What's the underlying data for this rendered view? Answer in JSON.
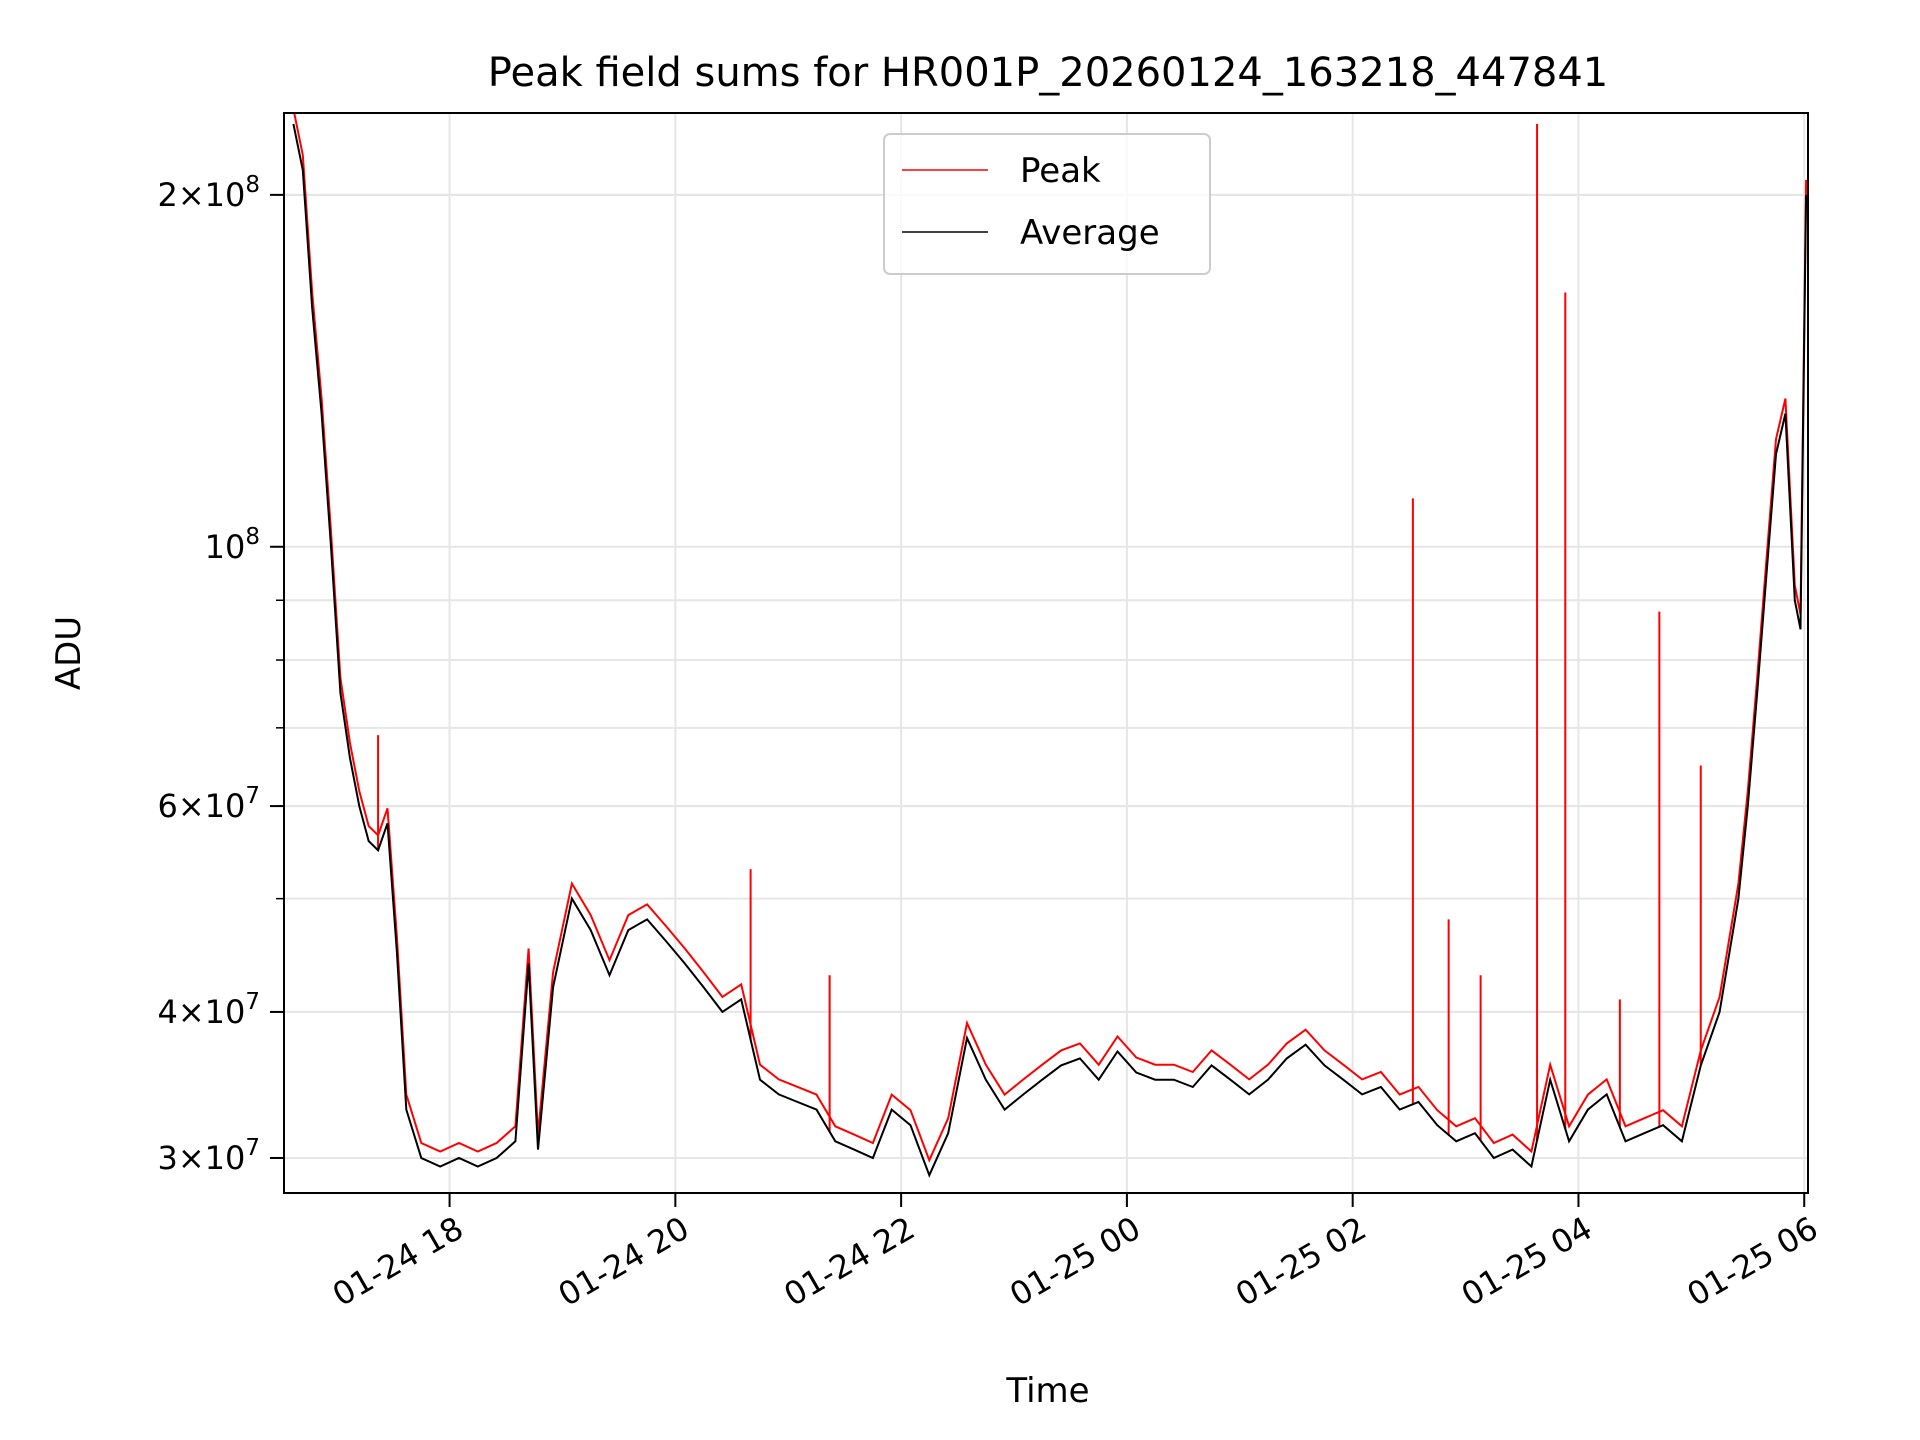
{
  "chart_data": {
    "type": "line",
    "title": "Peak field sums for HR001P_20260124_163218_447841",
    "xlabel": "Time",
    "ylabel": "ADU",
    "yscale": "log",
    "ylim": [
      28000000,
      235000000
    ],
    "xlim": [
      "2026-01-24T16:32",
      "2026-01-25T06:02"
    ],
    "grid": true,
    "legend": "upper center",
    "x_ticks": [
      {
        "t": "2026-01-24T18:00",
        "label": "01-24 18"
      },
      {
        "t": "2026-01-24T20:00",
        "label": "01-24 20"
      },
      {
        "t": "2026-01-24T22:00",
        "label": "01-24 22"
      },
      {
        "t": "2026-01-25T00:00",
        "label": "01-25 00"
      },
      {
        "t": "2026-01-25T02:00",
        "label": "01-25 02"
      },
      {
        "t": "2026-01-25T04:00",
        "label": "01-25 04"
      },
      {
        "t": "2026-01-25T06:00",
        "label": "01-25 06"
      }
    ],
    "y_ticks": [
      {
        "v": 30000000,
        "mant": "3",
        "exp": "7"
      },
      {
        "v": 40000000,
        "mant": "4",
        "exp": "7"
      },
      {
        "v": 60000000,
        "mant": "6",
        "exp": "7"
      },
      {
        "v": 100000000,
        "mant": "",
        "exp": "8"
      },
      {
        "v": 200000000,
        "mant": "2",
        "exp": "8"
      }
    ],
    "colors": {
      "peak": "#ff0000",
      "average": "#000000"
    },
    "series": [
      {
        "name": "Average",
        "key": "average",
        "x": [
          "2026-01-24T16:37",
          "2026-01-24T16:42",
          "2026-01-24T16:47",
          "2026-01-24T16:52",
          "2026-01-24T16:57",
          "2026-01-24T17:02",
          "2026-01-24T17:07",
          "2026-01-24T17:12",
          "2026-01-24T17:17",
          "2026-01-24T17:22",
          "2026-01-24T17:27",
          "2026-01-24T17:32",
          "2026-01-24T17:37",
          "2026-01-24T17:45",
          "2026-01-24T17:55",
          "2026-01-24T18:05",
          "2026-01-24T18:15",
          "2026-01-24T18:25",
          "2026-01-24T18:35",
          "2026-01-24T18:42",
          "2026-01-24T18:47",
          "2026-01-24T18:55",
          "2026-01-24T19:05",
          "2026-01-24T19:15",
          "2026-01-24T19:25",
          "2026-01-24T19:35",
          "2026-01-24T19:45",
          "2026-01-24T19:55",
          "2026-01-24T20:05",
          "2026-01-24T20:15",
          "2026-01-24T20:25",
          "2026-01-24T20:35",
          "2026-01-24T20:45",
          "2026-01-24T20:55",
          "2026-01-24T21:05",
          "2026-01-24T21:15",
          "2026-01-24T21:25",
          "2026-01-24T21:35",
          "2026-01-24T21:45",
          "2026-01-24T21:55",
          "2026-01-24T22:05",
          "2026-01-24T22:15",
          "2026-01-24T22:25",
          "2026-01-24T22:35",
          "2026-01-24T22:45",
          "2026-01-24T22:55",
          "2026-01-24T23:05",
          "2026-01-24T23:15",
          "2026-01-24T23:25",
          "2026-01-24T23:35",
          "2026-01-24T23:45",
          "2026-01-24T23:55",
          "2026-01-25T00:05",
          "2026-01-25T00:15",
          "2026-01-25T00:25",
          "2026-01-25T00:35",
          "2026-01-25T00:45",
          "2026-01-25T00:55",
          "2026-01-25T01:05",
          "2026-01-25T01:15",
          "2026-01-25T01:25",
          "2026-01-25T01:35",
          "2026-01-25T01:45",
          "2026-01-25T01:55",
          "2026-01-25T02:05",
          "2026-01-25T02:15",
          "2026-01-25T02:25",
          "2026-01-25T02:35",
          "2026-01-25T02:45",
          "2026-01-25T02:55",
          "2026-01-25T03:05",
          "2026-01-25T03:15",
          "2026-01-25T03:25",
          "2026-01-25T03:35",
          "2026-01-25T03:45",
          "2026-01-25T03:55",
          "2026-01-25T04:05",
          "2026-01-25T04:15",
          "2026-01-25T04:25",
          "2026-01-25T04:35",
          "2026-01-25T04:45",
          "2026-01-25T04:55",
          "2026-01-25T05:05",
          "2026-01-25T05:15",
          "2026-01-25T05:25",
          "2026-01-25T05:30",
          "2026-01-25T05:35",
          "2026-01-25T05:40",
          "2026-01-25T05:45",
          "2026-01-25T05:50",
          "2026-01-25T05:55",
          "2026-01-25T05:58",
          "2026-01-25T06:00",
          "2026-01-25T06:01"
        ],
        "values": [
          230000000,
          210000000,
          160000000,
          130000000,
          100000000,
          75000000,
          66000000,
          60000000,
          56000000,
          55000000,
          58000000,
          45000000,
          33000000,
          30000000,
          29500000,
          30000000,
          29500000,
          30000000,
          31000000,
          44000000,
          30500000,
          42000000,
          50000000,
          47000000,
          43000000,
          47000000,
          48000000,
          46000000,
          44000000,
          42000000,
          40000000,
          41000000,
          35000000,
          34000000,
          33500000,
          33000000,
          31000000,
          30500000,
          30000000,
          33000000,
          32000000,
          29000000,
          31500000,
          38000000,
          35000000,
          33000000,
          34000000,
          35000000,
          36000000,
          36500000,
          35000000,
          37000000,
          35500000,
          35000000,
          35000000,
          34500000,
          36000000,
          35000000,
          34000000,
          35000000,
          36500000,
          37500000,
          36000000,
          35000000,
          34000000,
          34500000,
          33000000,
          33500000,
          32000000,
          31000000,
          31500000,
          30000000,
          30500000,
          29500000,
          35000000,
          31000000,
          33000000,
          34000000,
          31000000,
          31500000,
          32000000,
          31000000,
          36000000,
          40000000,
          50000000,
          60000000,
          75000000,
          95000000,
          120000000,
          130000000,
          90000000,
          85000000,
          150000000,
          200000000
        ]
      },
      {
        "name": "Peak",
        "key": "peak",
        "spikes": [
          {
            "t": "2026-01-24T17:22",
            "v": 69000000
          },
          {
            "t": "2026-01-24T20:40",
            "v": 53000000
          },
          {
            "t": "2026-01-24T21:22",
            "v": 43000000
          },
          {
            "t": "2026-01-25T02:32",
            "v": 110000000
          },
          {
            "t": "2026-01-25T02:51",
            "v": 48000000
          },
          {
            "t": "2026-01-25T03:08",
            "v": 43000000
          },
          {
            "t": "2026-01-25T03:38",
            "v": 230000000
          },
          {
            "t": "2026-01-25T03:53",
            "v": 165000000
          },
          {
            "t": "2026-01-25T04:22",
            "v": 41000000
          },
          {
            "t": "2026-01-25T04:43",
            "v": 88000000
          },
          {
            "t": "2026-01-25T05:05",
            "v": 65000000
          }
        ]
      }
    ]
  }
}
